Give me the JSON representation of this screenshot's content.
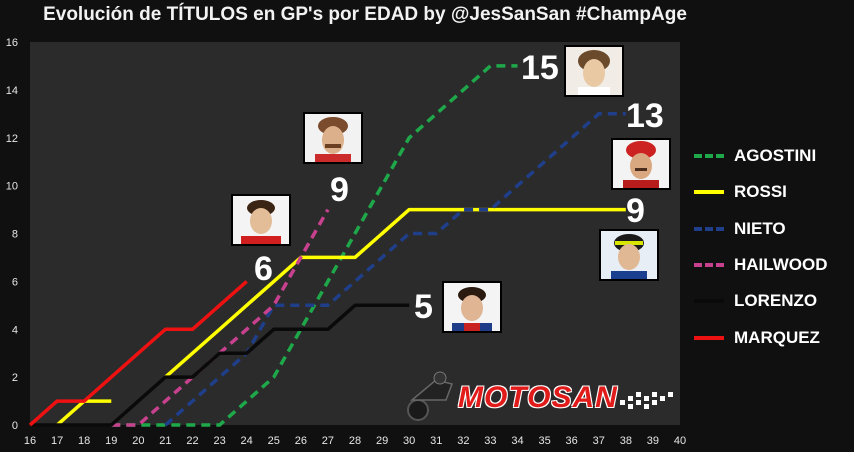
{
  "title": "Evolución de TÍTULOS en GP's por EDAD by @JesSanSan #ChampAge",
  "logo_text": "MOTOSAN",
  "colors": {
    "background": "#101010",
    "plot_bg": "#2b2b2b",
    "grid": "#444444",
    "axis_text": "#e6e6e6"
  },
  "chart_data": {
    "type": "line",
    "title": "Evolución de TÍTULOS en GP's por EDAD by @JesSanSan #ChampAge",
    "xlabel": "",
    "ylabel": "",
    "xlim": [
      16,
      40
    ],
    "ylim": [
      0,
      16
    ],
    "x_ticks": [
      16,
      17,
      18,
      19,
      20,
      21,
      22,
      23,
      24,
      25,
      26,
      27,
      28,
      29,
      30,
      31,
      32,
      33,
      34,
      35,
      36,
      37,
      38,
      39,
      40
    ],
    "y_ticks": [
      0,
      2,
      4,
      6,
      8,
      10,
      12,
      14,
      16
    ],
    "grid": false,
    "legend_position": "right",
    "series": [
      {
        "name": "AGOSTINI",
        "color": "#1fa84a",
        "style": "dashed",
        "points": [
          [
            19,
            0
          ],
          [
            20,
            0
          ],
          [
            21,
            0
          ],
          [
            22,
            0
          ],
          [
            23,
            0
          ],
          [
            24,
            1
          ],
          [
            25,
            2
          ],
          [
            26,
            4
          ],
          [
            27,
            6
          ],
          [
            28,
            8
          ],
          [
            29,
            10
          ],
          [
            30,
            12
          ],
          [
            31,
            13
          ],
          [
            32,
            14
          ],
          [
            33,
            15
          ],
          [
            34,
            15
          ]
        ],
        "end_label": "15"
      },
      {
        "name": "ROSSI",
        "color": "#ffff00",
        "style": "solid",
        "points": [
          [
            17,
            0
          ],
          [
            18,
            1
          ],
          [
            19,
            1
          ],
          [
            20,
            null
          ],
          [
            21,
            2
          ],
          [
            22,
            3
          ],
          [
            23,
            4
          ],
          [
            24,
            5
          ],
          [
            25,
            6
          ],
          [
            26,
            7
          ],
          [
            27,
            7
          ],
          [
            28,
            7
          ],
          [
            29,
            8
          ],
          [
            30,
            9
          ],
          [
            31,
            9
          ],
          [
            32,
            9
          ],
          [
            33,
            9
          ],
          [
            34,
            9
          ],
          [
            35,
            9
          ],
          [
            36,
            9
          ],
          [
            37,
            9
          ],
          [
            38,
            9
          ]
        ],
        "end_label": "9"
      },
      {
        "name": "NIETO",
        "color": "#1f3f8a",
        "style": "dashed",
        "points": [
          [
            21,
            0
          ],
          [
            22,
            1
          ],
          [
            23,
            2
          ],
          [
            24,
            3
          ],
          [
            25,
            5
          ],
          [
            26,
            5
          ],
          [
            27,
            5
          ],
          [
            28,
            6
          ],
          [
            29,
            7
          ],
          [
            30,
            8
          ],
          [
            31,
            8
          ],
          [
            32,
            9
          ],
          [
            33,
            9
          ],
          [
            34,
            10
          ],
          [
            35,
            11
          ],
          [
            36,
            12
          ],
          [
            37,
            13
          ],
          [
            38,
            13
          ]
        ],
        "end_label": "13"
      },
      {
        "name": "HAILWOOD",
        "color": "#c8418f",
        "style": "dashed",
        "points": [
          [
            19,
            0
          ],
          [
            20,
            0
          ],
          [
            21,
            1
          ],
          [
            22,
            2
          ],
          [
            23,
            3
          ],
          [
            24,
            4
          ],
          [
            25,
            5
          ],
          [
            26,
            7
          ],
          [
            27,
            9
          ]
        ],
        "end_label": "9"
      },
      {
        "name": "LORENZO",
        "color": "#0a0a0a",
        "style": "solid",
        "points": [
          [
            16,
            0
          ],
          [
            17,
            0
          ],
          [
            18,
            0
          ],
          [
            19,
            0
          ],
          [
            20,
            1
          ],
          [
            21,
            2
          ],
          [
            22,
            2
          ],
          [
            23,
            3
          ],
          [
            24,
            3
          ],
          [
            25,
            4
          ],
          [
            26,
            4
          ],
          [
            27,
            4
          ],
          [
            28,
            5
          ],
          [
            29,
            5
          ],
          [
            30,
            5
          ]
        ],
        "end_label": "5"
      },
      {
        "name": "MARQUEZ",
        "color": "#ee1111",
        "style": "solid",
        "points": [
          [
            16,
            0
          ],
          [
            17,
            1
          ],
          [
            18,
            1
          ],
          [
            19,
            2
          ],
          [
            20,
            3
          ],
          [
            21,
            4
          ],
          [
            22,
            4
          ],
          [
            23,
            5
          ],
          [
            24,
            6
          ]
        ],
        "end_label": "6"
      }
    ]
  }
}
